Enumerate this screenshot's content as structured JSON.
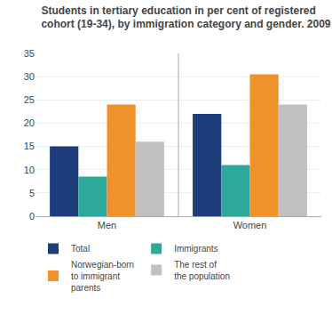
{
  "chart_data": {
    "type": "bar",
    "title": "Students in tertiary education in per cent of registered\ncohort (19-34), by immigration category and gender. 2009",
    "categories": [
      "Men",
      "Women"
    ],
    "series": [
      {
        "name": "Total",
        "color": "#1f3d7a",
        "values": [
          15.0,
          22.0
        ]
      },
      {
        "name": "Immigrants",
        "color": "#2da89a",
        "values": [
          8.5,
          11.0
        ]
      },
      {
        "name": "Norwegian-born\nto immigrant\nparents",
        "color": "#f0922b",
        "values": [
          24.0,
          30.5
        ]
      },
      {
        "name": "The rest of\nthe population",
        "color": "#c0c0c0",
        "values": [
          16.0,
          24.0
        ]
      }
    ],
    "ylim": [
      0,
      35
    ],
    "yticks": [
      0,
      5,
      10,
      15,
      20,
      25,
      30,
      35
    ],
    "grid": true,
    "legend": "lower left"
  }
}
